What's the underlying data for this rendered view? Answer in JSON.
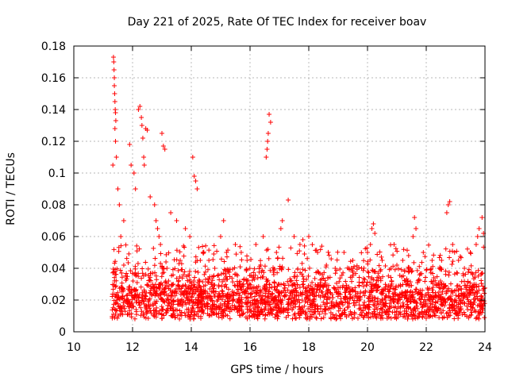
{
  "chart_data": {
    "type": "scatter",
    "title": "Day 221 of 2025, Rate Of TEC Index for receiver boav",
    "xlabel": "GPS time / hours",
    "ylabel": "ROTI / TECUs",
    "xlim": [
      10,
      24
    ],
    "ylim": [
      0,
      0.18
    ],
    "xticks": [
      10,
      12,
      14,
      16,
      18,
      20,
      22,
      24
    ],
    "yticks": [
      0,
      0.02,
      0.04,
      0.06,
      0.08,
      0.1,
      0.12,
      0.14,
      0.16,
      0.18
    ],
    "x_tick_labels": [
      "10",
      "12",
      "14",
      "16",
      "18",
      "20",
      "22",
      "24"
    ],
    "y_tick_labels": [
      "0",
      "0.02",
      "0.04",
      "0.06",
      "0.08",
      "0.1",
      "0.12",
      "0.14",
      "0.16",
      "0.18"
    ],
    "grid": true,
    "marker": "+",
    "series": [
      {
        "name": "ROTI",
        "color": "#ff0000",
        "x": [
          11.35,
          11.36,
          11.37,
          11.38,
          11.38,
          11.39,
          11.4,
          11.41,
          11.42,
          11.43,
          11.4,
          11.42,
          11.45,
          11.33,
          11.5,
          11.55,
          11.6,
          11.7,
          11.9,
          11.95,
          12.05,
          12.1,
          12.2,
          12.25,
          12.3,
          12.32,
          12.35,
          12.38,
          12.4,
          12.45,
          12.5,
          12.6,
          12.75,
          12.8,
          12.85,
          12.9,
          12.95,
          13.0,
          13.05,
          13.1,
          13.3,
          13.5,
          13.8,
          13.95,
          14.05,
          14.1,
          14.15,
          14.2,
          14.4,
          14.6,
          14.8,
          15.0,
          15.1,
          15.2,
          15.5,
          15.7,
          15.9,
          16.2,
          16.45,
          16.55,
          16.58,
          16.6,
          16.62,
          16.65,
          16.7,
          16.9,
          17.05,
          17.1,
          17.3,
          17.5,
          17.7,
          17.8,
          18.0,
          18.3,
          18.6,
          18.9,
          19.2,
          19.5,
          19.8,
          20.0,
          20.1,
          20.15,
          20.2,
          20.25,
          20.5,
          20.8,
          21.0,
          21.2,
          21.4,
          21.55,
          21.6,
          21.65,
          21.9,
          22.2,
          22.5,
          22.7,
          22.75,
          22.8,
          22.9,
          23.1,
          23.3,
          23.5,
          23.7,
          23.75,
          23.8,
          23.9,
          23.95
        ],
        "values": [
          0.173,
          0.17,
          0.165,
          0.16,
          0.155,
          0.15,
          0.145,
          0.14,
          0.138,
          0.133,
          0.128,
          0.12,
          0.11,
          0.105,
          0.09,
          0.08,
          0.06,
          0.07,
          0.118,
          0.105,
          0.1,
          0.09,
          0.14,
          0.142,
          0.135,
          0.13,
          0.122,
          0.11,
          0.105,
          0.128,
          0.127,
          0.085,
          0.08,
          0.07,
          0.065,
          0.06,
          0.055,
          0.125,
          0.117,
          0.115,
          0.075,
          0.07,
          0.065,
          0.06,
          0.11,
          0.098,
          0.095,
          0.09,
          0.05,
          0.045,
          0.04,
          0.06,
          0.07,
          0.05,
          0.055,
          0.05,
          0.045,
          0.055,
          0.06,
          0.11,
          0.115,
          0.12,
          0.125,
          0.137,
          0.132,
          0.05,
          0.065,
          0.07,
          0.083,
          0.06,
          0.055,
          0.058,
          0.06,
          0.05,
          0.042,
          0.04,
          0.05,
          0.045,
          0.04,
          0.05,
          0.055,
          0.065,
          0.068,
          0.062,
          0.045,
          0.04,
          0.042,
          0.045,
          0.048,
          0.06,
          0.072,
          0.065,
          0.05,
          0.045,
          0.04,
          0.075,
          0.08,
          0.082,
          0.055,
          0.045,
          0.04,
          0.05,
          0.055,
          0.06,
          0.065,
          0.072,
          0.062
        ],
        "dense_band": {
          "x_range": [
            11.3,
            24
          ],
          "typical_range": [
            0.005,
            0.045
          ],
          "description": "dense cluster of points"
        }
      }
    ]
  }
}
